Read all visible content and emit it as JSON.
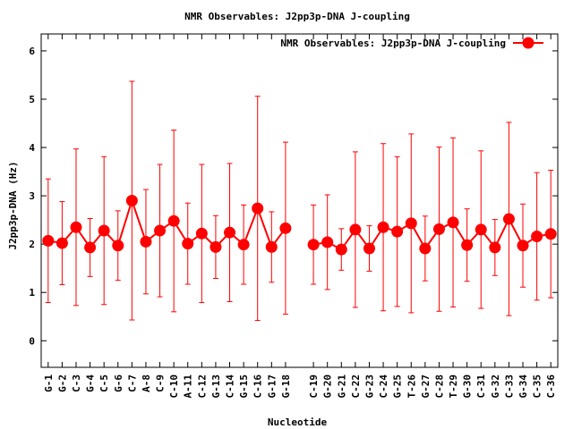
{
  "chart_data": {
    "type": "line",
    "title": "NMR Observables: J2pp3p-DNA J-coupling",
    "xlabel": "Nucleotide",
    "ylabel": "J2pp3p-DNA (Hz)",
    "ylim": [
      -0.55,
      6.35
    ],
    "yticks": [
      "0",
      "1",
      "2",
      "3",
      "4",
      "5",
      "6"
    ],
    "grid": false,
    "legend_position": "top-right",
    "colors": {
      "series": "#ff0000",
      "axis": "#000000"
    },
    "series": [
      {
        "name": "NMR Observables: J2pp3p-DNA J-coupling",
        "points": [
          {
            "label": "G-1",
            "y": 2.07,
            "err": 1.28
          },
          {
            "label": "G-2",
            "y": 2.02,
            "err": 0.86
          },
          {
            "label": "C-3",
            "y": 2.35,
            "err": 1.62
          },
          {
            "label": "G-4",
            "y": 1.93,
            "err": 0.6
          },
          {
            "label": "C-5",
            "y": 2.28,
            "err": 1.53
          },
          {
            "label": "G-6",
            "y": 1.97,
            "err": 0.72
          },
          {
            "label": "C-7",
            "y": 2.9,
            "err": 2.47
          },
          {
            "label": "A-8",
            "y": 2.05,
            "err": 1.08
          },
          {
            "label": "C-9",
            "y": 2.28,
            "err": 1.37
          },
          {
            "label": "C-10",
            "y": 2.48,
            "err": 1.88
          },
          {
            "label": "A-11",
            "y": 2.01,
            "err": 0.84
          },
          {
            "label": "C-12",
            "y": 2.22,
            "err": 1.43
          },
          {
            "label": "G-13",
            "y": 1.94,
            "err": 0.65
          },
          {
            "label": "C-14",
            "y": 2.24,
            "err": 1.43
          },
          {
            "label": "G-15",
            "y": 1.99,
            "err": 0.82
          },
          {
            "label": "C-16",
            "y": 2.74,
            "err": 2.32
          },
          {
            "label": "G-17",
            "y": 1.94,
            "err": 0.73
          },
          {
            "label": "G-18",
            "y": 2.33,
            "err": 1.78
          },
          {
            "label": "C-19",
            "y": 1.99,
            "err": 0.82
          },
          {
            "label": "G-20",
            "y": 2.04,
            "err": 0.98
          },
          {
            "label": "G-21",
            "y": 1.89,
            "err": 0.43
          },
          {
            "label": "C-22",
            "y": 2.3,
            "err": 1.61
          },
          {
            "label": "G-23",
            "y": 1.91,
            "err": 0.47
          },
          {
            "label": "C-24",
            "y": 2.35,
            "err": 1.73
          },
          {
            "label": "G-25",
            "y": 2.26,
            "err": 1.55
          },
          {
            "label": "T-26",
            "y": 2.43,
            "err": 1.85
          },
          {
            "label": "G-27",
            "y": 1.91,
            "err": 0.67
          },
          {
            "label": "C-28",
            "y": 2.31,
            "err": 1.7
          },
          {
            "label": "T-29",
            "y": 2.45,
            "err": 1.75
          },
          {
            "label": "G-30",
            "y": 1.98,
            "err": 0.75
          },
          {
            "label": "C-31",
            "y": 2.3,
            "err": 1.63
          },
          {
            "label": "G-32",
            "y": 1.93,
            "err": 0.58
          },
          {
            "label": "C-33",
            "y": 2.52,
            "err": 2.0
          },
          {
            "label": "G-34",
            "y": 1.97,
            "err": 0.86
          },
          {
            "label": "C-35",
            "y": 2.16,
            "err": 1.32
          },
          {
            "label": "C-36",
            "y": 2.21,
            "err": 1.32
          }
        ]
      }
    ]
  }
}
